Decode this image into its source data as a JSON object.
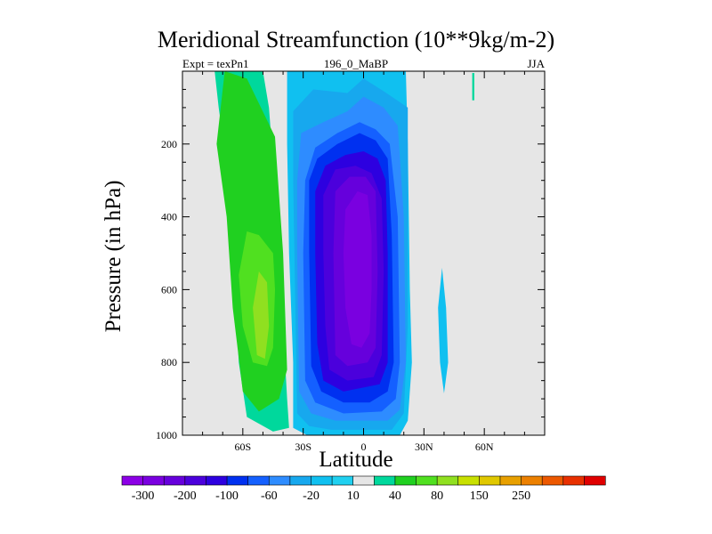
{
  "chart_data": {
    "type": "heatmap",
    "title": "Meridional Streamfunction (10**9kg/m-2)",
    "subtitle_left": "Expt = texPn1",
    "subtitle_center": "196_0_MaBP",
    "subtitle_right": "JJA",
    "xlabel": "Latitude",
    "ylabel": "Pressure (in hPa)",
    "xlim": [
      -90,
      90
    ],
    "ylim": [
      1000,
      0
    ],
    "x_ticks": [
      {
        "value": -60,
        "label": "60S"
      },
      {
        "value": -30,
        "label": "30S"
      },
      {
        "value": 0,
        "label": "0"
      },
      {
        "value": 30,
        "label": "30N"
      },
      {
        "value": 60,
        "label": "60N"
      }
    ],
    "y_ticks": [
      {
        "value": 200,
        "label": "200"
      },
      {
        "value": 400,
        "label": "400"
      },
      {
        "value": 600,
        "label": "600"
      },
      {
        "value": 800,
        "label": "800"
      },
      {
        "value": 1000,
        "label": "1000"
      }
    ],
    "background_color": "#e6e6e6",
    "colorbar": {
      "colors": [
        "#8c00e6",
        "#7a00e0",
        "#6600dc",
        "#4b00dc",
        "#2d00e0",
        "#0030f0",
        "#1460ff",
        "#2e8cff",
        "#17a8ee",
        "#10c0f0",
        "#20d0f0",
        "#e6e6e6",
        "#00d89c",
        "#20d020",
        "#50e020",
        "#90e020",
        "#c8e000",
        "#e0c800",
        "#e8a000",
        "#ec8000",
        "#ec5800",
        "#e83000",
        "#e00000"
      ],
      "labels": [
        {
          "after_box": 1,
          "label": "-300"
        },
        {
          "after_box": 3,
          "label": "-200"
        },
        {
          "after_box": 5,
          "label": "-100"
        },
        {
          "after_box": 7,
          "label": "-60"
        },
        {
          "after_box": 9,
          "label": "-20"
        },
        {
          "after_box": 11,
          "label": "10"
        },
        {
          "after_box": 13,
          "label": "40"
        },
        {
          "after_box": 15,
          "label": "80"
        },
        {
          "after_box": 17,
          "label": "150"
        },
        {
          "after_box": 19,
          "label": "250"
        }
      ]
    },
    "regions": [
      {
        "name": "sh-cell-outer",
        "color": "#00d89c",
        "points": [
          [
            -85,
            0
          ],
          [
            -74,
            0
          ],
          [
            -72,
            100
          ],
          [
            -67,
            300
          ],
          [
            -64,
            600
          ],
          [
            -62,
            800
          ],
          [
            -58,
            950
          ],
          [
            -45,
            990
          ],
          [
            -37,
            980
          ],
          [
            -38,
            900
          ],
          [
            -40,
            700
          ],
          [
            -43,
            400
          ],
          [
            -47,
            100
          ],
          [
            -50,
            0
          ]
        ]
      },
      {
        "name": "sh-cell-mid",
        "color": "#20d020",
        "points": [
          [
            -73,
            200
          ],
          [
            -69,
            0
          ],
          [
            -58,
            20
          ],
          [
            -44,
            180
          ],
          [
            -40,
            500
          ],
          [
            -38,
            820
          ],
          [
            -42,
            900
          ],
          [
            -52,
            935
          ],
          [
            -60,
            880
          ],
          [
            -65,
            650
          ],
          [
            -68,
            400
          ]
        ]
      },
      {
        "name": "sh-cell-core",
        "color": "#50e020",
        "points": [
          [
            -62,
            560
          ],
          [
            -58,
            440
          ],
          [
            -52,
            450
          ],
          [
            -45,
            500
          ],
          [
            -44,
            600
          ],
          [
            -45,
            760
          ],
          [
            -48,
            810
          ],
          [
            -55,
            800
          ],
          [
            -60,
            700
          ]
        ]
      },
      {
        "name": "sh-cell-peak",
        "color": "#90e020",
        "points": [
          [
            -55,
            650
          ],
          [
            -52,
            550
          ],
          [
            -48,
            580
          ],
          [
            -47,
            700
          ],
          [
            -49,
            790
          ],
          [
            -53,
            780
          ]
        ]
      },
      {
        "name": "nh-cell-l1",
        "color": "#10c0f0",
        "points": [
          [
            -38,
            0
          ],
          [
            21,
            0
          ],
          [
            22,
            200
          ],
          [
            23,
            600
          ],
          [
            24,
            800
          ],
          [
            22,
            960
          ],
          [
            18,
            1000
          ],
          [
            -28,
            1000
          ],
          [
            -35,
            980
          ],
          [
            -35,
            800
          ],
          [
            -37,
            500
          ],
          [
            -38,
            200
          ]
        ]
      },
      {
        "name": "nh-cell-l2",
        "color": "#17a8ee",
        "points": [
          [
            -35,
            300
          ],
          [
            -35,
            110
          ],
          [
            -25,
            50
          ],
          [
            -8,
            60
          ],
          [
            0,
            20
          ],
          [
            10,
            55
          ],
          [
            22,
            100
          ],
          [
            22,
            700
          ],
          [
            20,
            940
          ],
          [
            14,
            985
          ],
          [
            -16,
            985
          ],
          [
            -27,
            975
          ],
          [
            -33,
            940
          ]
        ]
      },
      {
        "name": "nh-cell-l3",
        "color": "#2e8cff",
        "points": [
          [
            -33,
            500
          ],
          [
            -33,
            300
          ],
          [
            -31,
            170
          ],
          [
            -20,
            140
          ],
          [
            -8,
            110
          ],
          [
            0,
            70
          ],
          [
            10,
            100
          ],
          [
            17,
            150
          ],
          [
            20,
            400
          ],
          [
            21,
            800
          ],
          [
            18,
            930
          ],
          [
            12,
            960
          ],
          [
            -14,
            960
          ],
          [
            -26,
            940
          ],
          [
            -32,
            880
          ]
        ]
      },
      {
        "name": "nh-cell-l4",
        "color": "#1460ff",
        "points": [
          [
            -30,
            500
          ],
          [
            -29,
            300
          ],
          [
            -24,
            210
          ],
          [
            -13,
            170
          ],
          [
            -2,
            140
          ],
          [
            6,
            160
          ],
          [
            13,
            200
          ],
          [
            17,
            400
          ],
          [
            18,
            800
          ],
          [
            16,
            900
          ],
          [
            9,
            935
          ],
          [
            -10,
            940
          ],
          [
            -24,
            910
          ],
          [
            -29,
            850
          ]
        ]
      },
      {
        "name": "nh-cell-l5",
        "color": "#0030f0",
        "points": [
          [
            -27,
            500
          ],
          [
            -27,
            300
          ],
          [
            -23,
            240
          ],
          [
            -13,
            200
          ],
          [
            -2,
            170
          ],
          [
            6,
            190
          ],
          [
            12,
            240
          ],
          [
            14,
            450
          ],
          [
            15,
            800
          ],
          [
            12,
            880
          ],
          [
            3,
            910
          ],
          [
            -10,
            910
          ],
          [
            -21,
            880
          ],
          [
            -26,
            810
          ]
        ]
      },
      {
        "name": "nh-cell-l6",
        "color": "#2d00e0",
        "points": [
          [
            -24,
            500
          ],
          [
            -24,
            330
          ],
          [
            -19,
            260
          ],
          [
            -9,
            230
          ],
          [
            0,
            220
          ],
          [
            7,
            240
          ],
          [
            11,
            300
          ],
          [
            12,
            500
          ],
          [
            12,
            800
          ],
          [
            8,
            860
          ],
          [
            -10,
            880
          ],
          [
            -20,
            850
          ],
          [
            -23,
            750
          ]
        ]
      },
      {
        "name": "nh-cell-l7",
        "color": "#4b00dc",
        "points": [
          [
            -20,
            500
          ],
          [
            -20,
            340
          ],
          [
            -14,
            270
          ],
          [
            -4,
            260
          ],
          [
            4,
            280
          ],
          [
            9,
            350
          ],
          [
            10,
            550
          ],
          [
            9,
            780
          ],
          [
            5,
            840
          ],
          [
            -8,
            850
          ],
          [
            -17,
            820
          ],
          [
            -19,
            700
          ]
        ]
      },
      {
        "name": "nh-cell-l8",
        "color": "#6600dc",
        "points": [
          [
            -15,
            500
          ],
          [
            -14,
            330
          ],
          [
            -7,
            290
          ],
          [
            1,
            290
          ],
          [
            6,
            330
          ],
          [
            7,
            550
          ],
          [
            6,
            760
          ],
          [
            2,
            800
          ],
          [
            -8,
            810
          ],
          [
            -14,
            780
          ]
        ]
      },
      {
        "name": "nh-cell-l9",
        "color": "#7a00e0",
        "points": [
          [
            -10,
            500
          ],
          [
            -9,
            380
          ],
          [
            -3,
            330
          ],
          [
            2,
            340
          ],
          [
            4,
            450
          ],
          [
            4,
            600
          ],
          [
            3,
            720
          ],
          [
            -1,
            760
          ],
          [
            -6,
            750
          ],
          [
            -9,
            650
          ]
        ]
      },
      {
        "name": "sub-tropical-lobe",
        "color": "#10c0f0",
        "points": [
          [
            39,
            540
          ],
          [
            41,
            650
          ],
          [
            42,
            800
          ],
          [
            40,
            885
          ],
          [
            38,
            800
          ],
          [
            37,
            650
          ]
        ]
      },
      {
        "name": "upper-thin-mark",
        "color": "#00d89c",
        "points": [
          [
            54,
            5
          ],
          [
            55,
            5
          ],
          [
            55,
            80
          ],
          [
            54,
            80
          ]
        ]
      }
    ]
  }
}
